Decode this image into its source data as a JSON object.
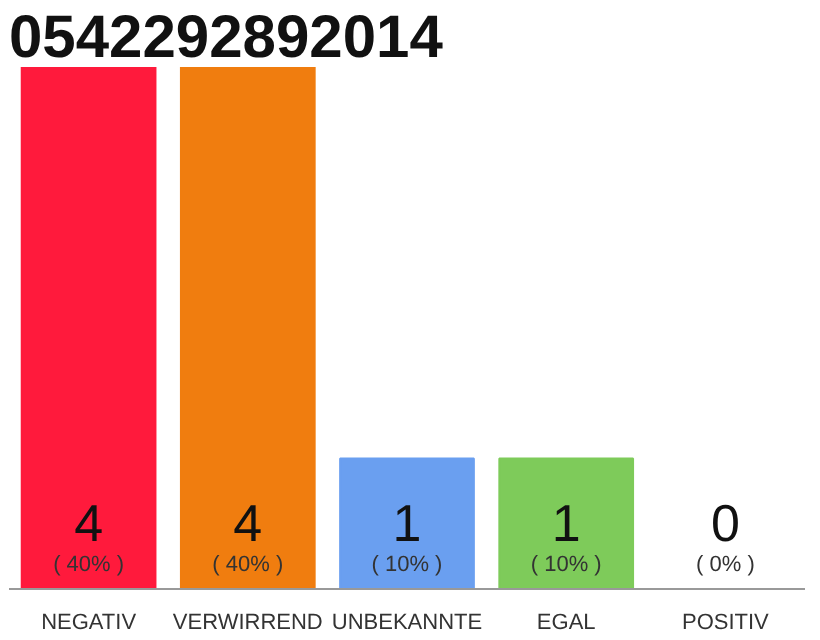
{
  "chart_data": {
    "type": "bar",
    "title": "0542292892014",
    "categories": [
      "NEGATIV",
      "VERWIRREND",
      "UNBEKANNTE",
      "EGAL",
      "POSITIV"
    ],
    "values": [
      4,
      4,
      1,
      1,
      0
    ],
    "value_labels": [
      "4",
      "4",
      "1",
      "1",
      "0"
    ],
    "colors": [
      "#ff1a3c",
      "#f07d0f",
      "#6a9ff0",
      "#7ecb5a",
      "#eeeeee"
    ],
    "tick_labels": "x",
    "annotations": [
      "( 40% )",
      "( 40% )",
      "( 10% )",
      "( 10% )",
      "( 0% )"
    ]
  }
}
